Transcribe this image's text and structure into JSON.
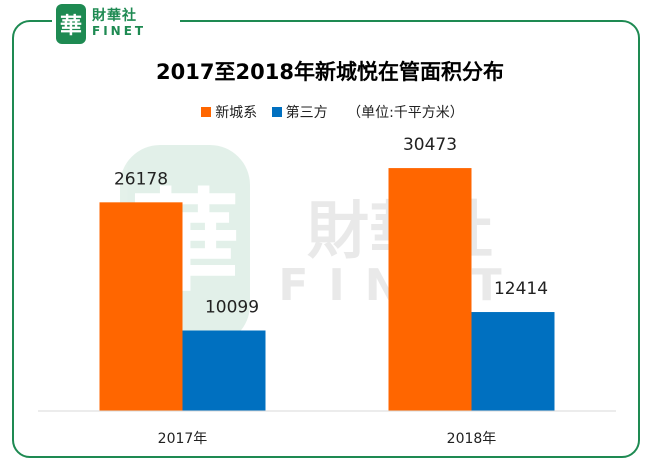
{
  "logo": {
    "seal": "華",
    "name_cn": "財華社",
    "name_en": "FINET"
  },
  "watermark": {
    "seal": "華",
    "name_cn": "財華社",
    "name_en": "FINET"
  },
  "colors": {
    "accent": "#1e8a52",
    "series_1": "#ff6600",
    "series_2": "#0070c0"
  },
  "chart_data": {
    "type": "bar",
    "title": "2017至2018年新城悦在管面积分布",
    "unit_note": "（单位:千平方米）",
    "categories": [
      "2017年",
      "2018年"
    ],
    "series": [
      {
        "name": "新城系",
        "color": "#ff6600",
        "values": [
          26178,
          30473
        ]
      },
      {
        "name": "第三方",
        "color": "#0070c0",
        "values": [
          10099,
          12414
        ]
      }
    ],
    "ylim": [
      0,
      35000
    ],
    "grid": false,
    "legend_position": "top"
  }
}
